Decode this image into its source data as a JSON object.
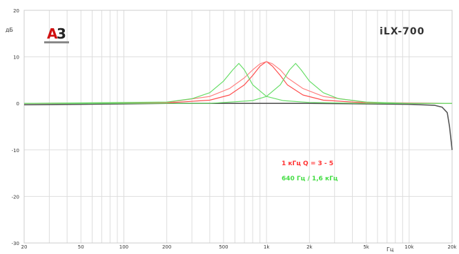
{
  "chart_data": {
    "type": "line",
    "title": "iLX-700",
    "logo": "A3",
    "xlabel": "Гц",
    "ylabel": "дБ",
    "x_scale": "log",
    "xlim": [
      20,
      20000
    ],
    "ylim": [
      -30,
      20
    ],
    "grid": true,
    "x_ticks": [
      20,
      50,
      100,
      200,
      500,
      1000,
      2000,
      5000,
      10000,
      20000
    ],
    "x_tick_labels": [
      "20",
      "50",
      "100",
      "200",
      "500",
      "1k",
      "2k",
      "5k",
      "10k",
      "20k"
    ],
    "y_ticks": [
      20,
      10,
      0,
      -10,
      -20,
      -30
    ],
    "y_tick_labels": [
      "20",
      "10",
      "0",
      "-10",
      "-20",
      "-30"
    ],
    "annotations": [
      {
        "text": "1 кГц Q = 3 - 5",
        "color": "#ff3333"
      },
      {
        "text": "640 Гц / 1,6 кГц",
        "color": "#44dd44"
      }
    ],
    "series": [
      {
        "color": "#555555",
        "x": [
          20,
          50,
          100,
          200,
          500,
          1000,
          2000,
          5000,
          10000,
          15000,
          17000,
          18500,
          19200,
          20000
        ],
        "y": [
          -0.3,
          -0.2,
          -0.1,
          0,
          0,
          0,
          0,
          -0.1,
          -0.2,
          -0.4,
          -0.8,
          -2,
          -5,
          -10
        ]
      },
      {
        "color": "#ff4d4d",
        "x": [
          20,
          200,
          400,
          550,
          700,
          800,
          900,
          1000,
          1100,
          1250,
          1400,
          1800,
          2500,
          5000,
          20000
        ],
        "y": [
          0,
          0.1,
          0.7,
          1.8,
          4.0,
          6.0,
          8.0,
          9.0,
          8.0,
          6.0,
          4.0,
          1.8,
          0.7,
          0.1,
          0
        ]
      },
      {
        "color": "#ff8080",
        "x": [
          20,
          200,
          400,
          550,
          700,
          800,
          900,
          1000,
          1100,
          1250,
          1400,
          1800,
          2500,
          5000,
          20000
        ],
        "y": [
          0,
          0.2,
          1.5,
          3.2,
          5.5,
          7.2,
          8.5,
          9.0,
          8.5,
          7.2,
          5.5,
          3.2,
          1.5,
          0.2,
          0
        ]
      },
      {
        "color": "#66dd66",
        "x": [
          20,
          200,
          300,
          400,
          500,
          580,
          640,
          700,
          800,
          1000,
          1300,
          2000,
          5000,
          20000
        ],
        "y": [
          0,
          0.3,
          1.0,
          2.3,
          4.8,
          7.2,
          8.6,
          7.2,
          4.0,
          1.5,
          0.6,
          0.2,
          0,
          0
        ]
      },
      {
        "color": "#66dd66",
        "x": [
          20,
          400,
          800,
          1000,
          1250,
          1450,
          1600,
          1750,
          2000,
          2500,
          3200,
          5000,
          10000,
          20000
        ],
        "y": [
          0,
          0,
          0.6,
          1.5,
          4.0,
          7.2,
          8.6,
          7.2,
          4.8,
          2.3,
          1.0,
          0.3,
          0,
          0
        ]
      }
    ]
  }
}
